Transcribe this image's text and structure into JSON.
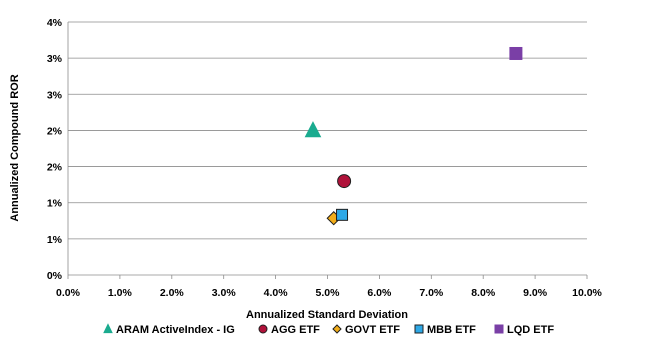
{
  "chart_data": {
    "type": "scatter",
    "title": "",
    "xlabel": "Annualized Standard Deviation",
    "ylabel": "Annualized Compound ROR",
    "xlim": [
      0,
      10
    ],
    "ylim": [
      0,
      4.5
    ],
    "x_ticks": [
      "0.0%",
      "1.0%",
      "2.0%",
      "3.0%",
      "4.0%",
      "5.0%",
      "6.0%",
      "7.0%",
      "8.0%",
      "9.0%",
      "10.0%"
    ],
    "y_ticks": [
      "0%",
      "1%",
      "1%",
      "2%",
      "2%",
      "3%",
      "3%",
      "4%"
    ],
    "grid": "horizontal",
    "legend_position": "bottom",
    "series": [
      {
        "name": "ARAM ActiveIndex - IG",
        "marker": "triangle",
        "color": "#1aab8f",
        "x": 4.72,
        "y": 2.58
      },
      {
        "name": "AGG ETF",
        "marker": "circle",
        "color": "#b0123a",
        "x": 5.32,
        "y": 1.67
      },
      {
        "name": "GOVT ETF",
        "marker": "diamond",
        "color": "#f2ad1a",
        "x": 5.12,
        "y": 1.01
      },
      {
        "name": "MBB ETF",
        "marker": "square",
        "color": "#2ea8e6",
        "x": 5.28,
        "y": 1.07
      },
      {
        "name": "LQD ETF",
        "marker": "square",
        "color": "#7a3fa6",
        "x": 8.63,
        "y": 3.94
      }
    ]
  }
}
